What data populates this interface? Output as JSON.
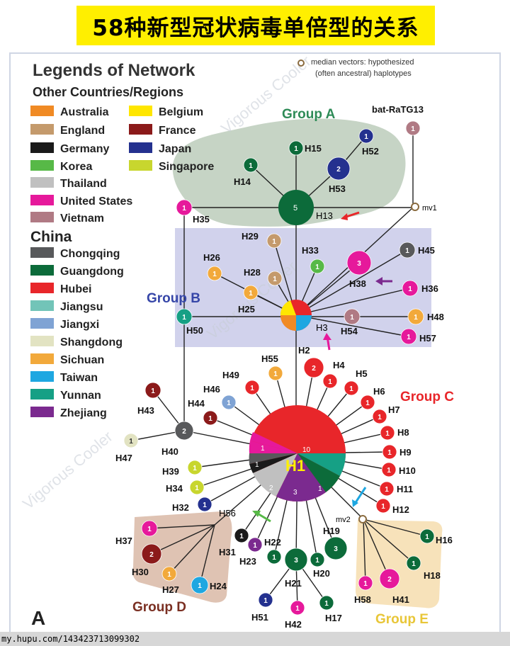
{
  "title": "58种新型冠状病毒单倍型的关系",
  "legend": {
    "heading": "Legends of Network",
    "other_heading": "Other Countries/Regions",
    "other_items": [
      {
        "label": "Australia",
        "color": "#f08a24"
      },
      {
        "label": "Belgium",
        "color": "#ffe600"
      },
      {
        "label": "England",
        "color": "#c49a6c"
      },
      {
        "label": "France",
        "color": "#8b1a1a"
      },
      {
        "label": "Germany",
        "color": "#1a1a1a"
      },
      {
        "label": "Japan",
        "color": "#24318f"
      },
      {
        "label": "Korea",
        "color": "#57b947"
      },
      {
        "label": "Singapore",
        "color": "#c8d62e"
      },
      {
        "label": "Thailand",
        "color": "#c0c0c0"
      },
      {
        "label": "United States",
        "color": "#e6199b"
      },
      {
        "label": "Vietnam",
        "color": "#b07a84"
      }
    ],
    "china_heading": "China",
    "china_items": [
      {
        "label": "Chongqing",
        "color": "#58595b"
      },
      {
        "label": "Guangdong",
        "color": "#0c6b3a"
      },
      {
        "label": "Hubei",
        "color": "#e8262a"
      },
      {
        "label": "Jiangsu",
        "color": "#72c4b8"
      },
      {
        "label": "Jiangxi",
        "color": "#7fa3d4"
      },
      {
        "label": "Shangdong",
        "color": "#e2e3c2"
      },
      {
        "label": "Sichuan",
        "color": "#f2a93b"
      },
      {
        "label": "Taiwan",
        "color": "#1ea7e1"
      },
      {
        "label": "Yunnan",
        "color": "#16a085"
      },
      {
        "label": "Zhejiang",
        "color": "#7b2a8f"
      }
    ],
    "median_note_line1": "median vectors: hypothesized",
    "median_note_line2": "(often ancestral) haplotypes"
  },
  "groups": {
    "a": "Group A",
    "b": "Group B",
    "c": "Group C",
    "d": "Group D",
    "e": "Group E"
  },
  "watermark": "Vigorous Cooler",
  "panel_letter": "A",
  "source_url": "my.hupu.com/143423713099302",
  "median_vectors": [
    "mv1",
    "mv2"
  ],
  "nodes": [
    {
      "id": "H1",
      "count": "10",
      "label": "H1"
    },
    {
      "id": "H2",
      "count": "2",
      "label": "H2"
    },
    {
      "id": "H3",
      "count": "",
      "label": "H3"
    },
    {
      "id": "H4",
      "count": "1",
      "label": "H4"
    },
    {
      "id": "H5",
      "count": "1",
      "label": "H5"
    },
    {
      "id": "H6",
      "count": "1",
      "label": "H6"
    },
    {
      "id": "H7",
      "count": "1",
      "label": "H7"
    },
    {
      "id": "H8",
      "count": "1",
      "label": "H8"
    },
    {
      "id": "H9",
      "count": "1",
      "label": "H9"
    },
    {
      "id": "H10",
      "count": "1",
      "label": "H10"
    },
    {
      "id": "H11",
      "count": "1",
      "label": "H11"
    },
    {
      "id": "H12",
      "count": "1",
      "label": "H12"
    },
    {
      "id": "H13",
      "count": "5",
      "label": "H13"
    },
    {
      "id": "H14",
      "count": "1",
      "label": "H14"
    },
    {
      "id": "H15",
      "count": "1",
      "label": "H15"
    },
    {
      "id": "H16",
      "count": "1",
      "label": "H16"
    },
    {
      "id": "H17",
      "count": "1",
      "label": "H17"
    },
    {
      "id": "H18",
      "count": "1",
      "label": "H18"
    },
    {
      "id": "H19",
      "count": "3",
      "label": "H19"
    },
    {
      "id": "H20",
      "count": "1",
      "label": "H20"
    },
    {
      "id": "H21",
      "count": "3",
      "label": "H21"
    },
    {
      "id": "H22",
      "count": "1",
      "label": "H22"
    },
    {
      "id": "H23",
      "count": "1",
      "label": "H23"
    },
    {
      "id": "H24",
      "count": "1",
      "label": "H24"
    },
    {
      "id": "H25",
      "count": "1",
      "label": "H25"
    },
    {
      "id": "H26",
      "count": "1",
      "label": "H26"
    },
    {
      "id": "H27",
      "count": "1",
      "label": "H27"
    },
    {
      "id": "H28",
      "count": "1",
      "label": "H28"
    },
    {
      "id": "H29",
      "count": "1",
      "label": "H29"
    },
    {
      "id": "H30",
      "count": "2",
      "label": "H30"
    },
    {
      "id": "H31",
      "count": "1",
      "label": "H31"
    },
    {
      "id": "H32",
      "count": "1",
      "label": "H32"
    },
    {
      "id": "H33",
      "count": "1",
      "label": "H33"
    },
    {
      "id": "H34",
      "count": "1",
      "label": "H34"
    },
    {
      "id": "H35",
      "count": "1",
      "label": "H35"
    },
    {
      "id": "H36",
      "count": "1",
      "label": "H36"
    },
    {
      "id": "H37",
      "count": "1",
      "label": "H37"
    },
    {
      "id": "H38",
      "count": "3",
      "label": "H38"
    },
    {
      "id": "H39",
      "count": "1",
      "label": "H39"
    },
    {
      "id": "H40",
      "count": "2",
      "label": "H40"
    },
    {
      "id": "H41",
      "count": "2",
      "label": "H41"
    },
    {
      "id": "H42",
      "count": "1",
      "label": "H42"
    },
    {
      "id": "H43",
      "count": "1",
      "label": "H43"
    },
    {
      "id": "H44",
      "count": "1",
      "label": "H44"
    },
    {
      "id": "H45",
      "count": "1",
      "label": "H45"
    },
    {
      "id": "H46",
      "count": "1",
      "label": "H46"
    },
    {
      "id": "H47",
      "count": "1",
      "label": "H47"
    },
    {
      "id": "H48",
      "count": "1",
      "label": "H48"
    },
    {
      "id": "H49",
      "count": "1",
      "label": "H49"
    },
    {
      "id": "H50",
      "count": "1",
      "label": "H50"
    },
    {
      "id": "H51",
      "count": "1",
      "label": "H51"
    },
    {
      "id": "H52",
      "count": "1",
      "label": "H52"
    },
    {
      "id": "H53",
      "count": "2",
      "label": "H53"
    },
    {
      "id": "H54",
      "count": "1",
      "label": "H54"
    },
    {
      "id": "H55",
      "count": "1",
      "label": "H55"
    },
    {
      "id": "H56",
      "count": "",
      "label": "H56"
    },
    {
      "id": "H57",
      "count": "1",
      "label": "H57"
    },
    {
      "id": "H58",
      "count": "1",
      "label": "H58"
    },
    {
      "id": "bat-RaTG13",
      "count": "1",
      "label": "bat-RaTG13"
    }
  ],
  "h1_slice_counts": [
    "10",
    "1",
    "1",
    "2",
    "3",
    "1"
  ]
}
